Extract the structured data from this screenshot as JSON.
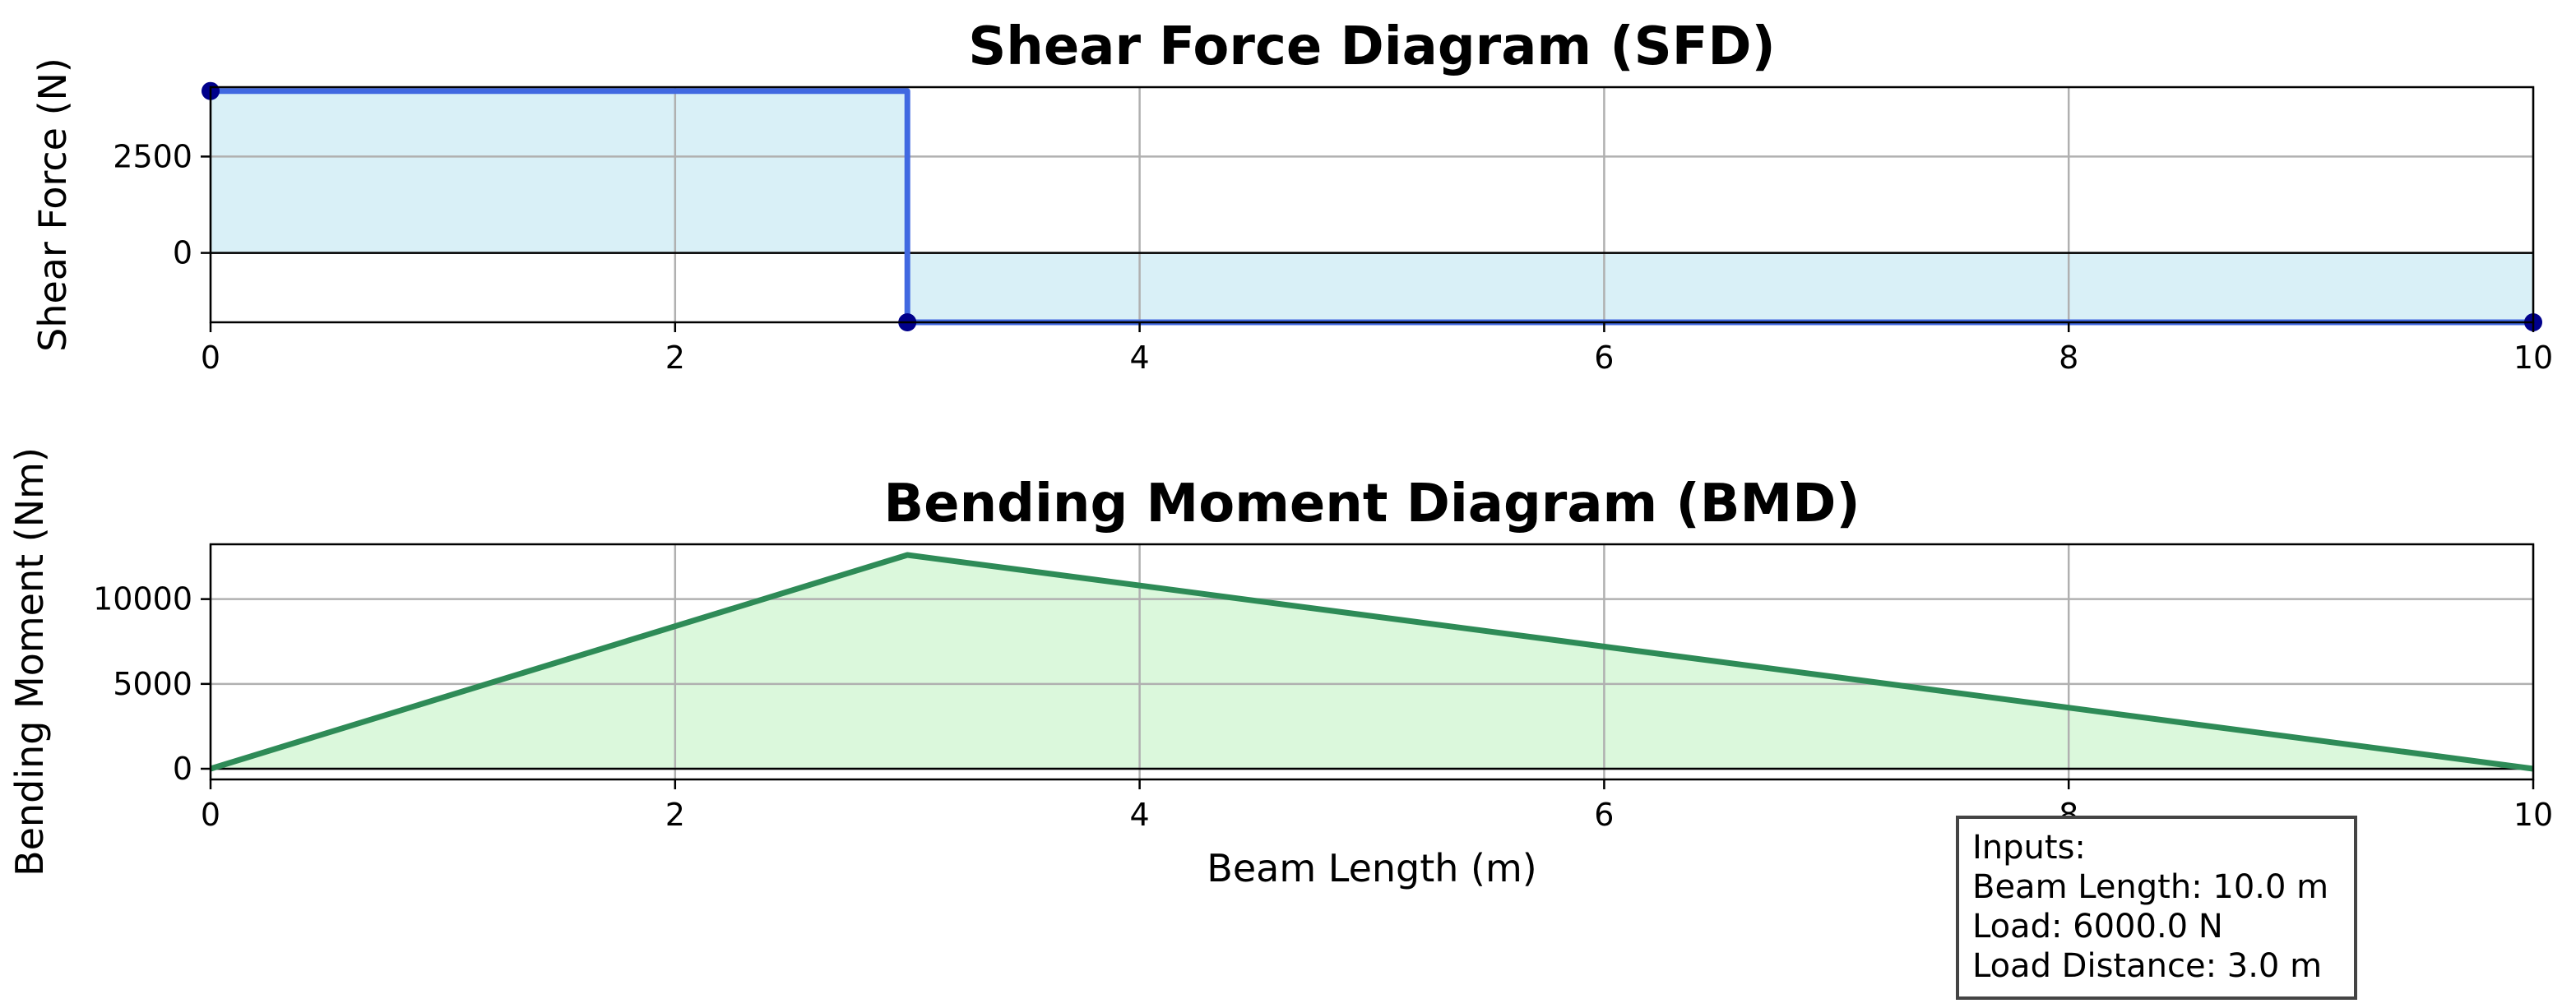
{
  "chart_data": [
    {
      "type": "area",
      "title": "Shear Force Diagram (SFD)",
      "ylabel": "Shear Force (N)",
      "xlabel": "",
      "xlim": [
        0,
        10
      ],
      "ylim": [
        -1800,
        4300
      ],
      "xticks": [
        "0",
        "2",
        "4",
        "6",
        "8",
        "10"
      ],
      "yticks": [
        "0",
        "2500"
      ],
      "x": [
        0,
        3,
        3,
        10
      ],
      "y": [
        4200,
        4200,
        -1800,
        -1800
      ],
      "markers": [
        {
          "x": 0,
          "y": 4200
        },
        {
          "x": 3,
          "y": -1800
        },
        {
          "x": 10,
          "y": -1800
        }
      ],
      "grid": true,
      "line_color": "#4169e1",
      "fill_color": "#d9f0f7",
      "marker_color": "#00008b"
    },
    {
      "type": "area",
      "title": "Bending Moment Diagram (BMD)",
      "ylabel": "Bending Moment (Nm)",
      "xlabel": "Beam Length (m)",
      "xlim": [
        0,
        10
      ],
      "ylim": [
        -630,
        13230
      ],
      "xticks": [
        "0",
        "2",
        "4",
        "6",
        "8",
        "10"
      ],
      "yticks": [
        "0",
        "5000",
        "10000"
      ],
      "x": [
        0,
        3,
        10
      ],
      "y": [
        0,
        12600,
        0
      ],
      "grid": true,
      "line_color": "#2e8b57",
      "fill_color": "#dbf8dc"
    }
  ],
  "infobox": {
    "lines": [
      "Inputs:",
      "Beam Length: 10.0 m",
      "Load: 6000.0 N",
      "Load Distance: 3.0 m"
    ]
  }
}
